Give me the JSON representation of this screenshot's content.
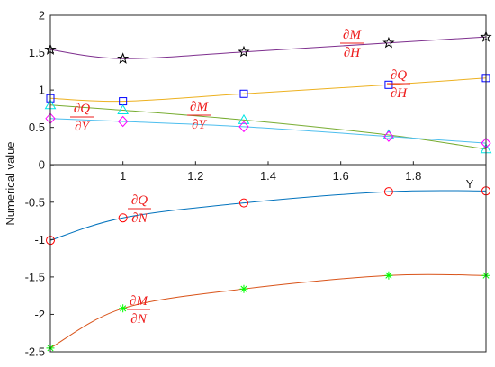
{
  "chart_data": {
    "type": "line",
    "ylabel": "Numerical value",
    "xlabel": "",
    "x_axis_label": "Y",
    "xlim": [
      0.8,
      2.0
    ],
    "ylim": [
      -2.5,
      2
    ],
    "x_ticks": [
      1,
      1.2,
      1.4,
      1.6,
      1.8
    ],
    "y_ticks": [
      -2.5,
      -2,
      -1.5,
      -1,
      -0.5,
      0,
      0.5,
      1,
      1.5,
      2
    ],
    "x_tick_labels": [
      "1",
      "1.2",
      "1.4",
      "1.6",
      "1.8"
    ],
    "y_tick_labels": [
      "-2.5",
      "-2",
      "-1.5",
      "-1",
      "-0.5",
      "0",
      "0.5",
      "1",
      "1.5",
      "2"
    ],
    "grid": false,
    "series": [
      {
        "label_num": "∂M",
        "label_den": "∂H",
        "color": "#7e2f8e",
        "marker": "star",
        "marker_color": "#000000",
        "x": [
          0.8,
          1.0,
          1.333,
          1.732,
          2.0
        ],
        "y": [
          1.54,
          1.42,
          1.51,
          1.63,
          1.71
        ]
      },
      {
        "label_num": "∂Q",
        "label_den": "∂H",
        "color": "#edb120",
        "marker": "square",
        "marker_color": "#0000ff",
        "x": [
          0.8,
          1.0,
          1.333,
          1.732,
          2.0
        ],
        "y": [
          0.89,
          0.85,
          0.95,
          1.07,
          1.16
        ]
      },
      {
        "label_num": "∂M",
        "label_den": "∂Y",
        "color": "#77ac30",
        "marker": "triangle",
        "marker_color": "#00e5e5",
        "x": [
          0.8,
          1.0,
          1.333,
          1.732,
          2.0
        ],
        "y": [
          0.8,
          0.73,
          0.6,
          0.4,
          0.21
        ]
      },
      {
        "label_num": "∂Q",
        "label_den": "∂Y",
        "color": "#4dbeee",
        "marker": "diamond",
        "marker_color": "#ff00ff",
        "x": [
          0.8,
          1.0,
          1.333,
          1.732,
          2.0
        ],
        "y": [
          0.62,
          0.58,
          0.51,
          0.38,
          0.29
        ]
      },
      {
        "label_num": "∂Q",
        "label_den": "∂N",
        "color": "#0072bd",
        "marker": "circle",
        "marker_color": "#ff0000",
        "x": [
          0.8,
          1.0,
          1.333,
          1.732,
          2.0
        ],
        "y": [
          -1.01,
          -0.71,
          -0.51,
          -0.36,
          -0.35
        ]
      },
      {
        "label_num": "∂M",
        "label_den": "∂N",
        "color": "#d95319",
        "marker": "asterisk",
        "marker_color": "#00ff00",
        "x": [
          0.8,
          1.0,
          1.333,
          1.732,
          2.0
        ],
        "y": [
          -2.45,
          -1.92,
          -1.66,
          -1.48,
          -1.48
        ]
      }
    ]
  }
}
